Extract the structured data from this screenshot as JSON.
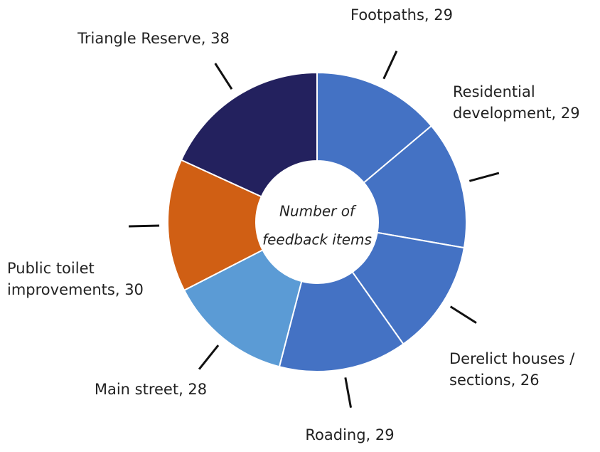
{
  "chart_data": {
    "type": "donut",
    "center_label": [
      "Number of",
      "feedback items"
    ],
    "values": [
      29,
      29,
      26,
      29,
      28,
      30,
      38
    ],
    "value_labels": [
      [
        "Footpaths, 29"
      ],
      [
        "Residential",
        "development, 29"
      ],
      [
        "Derelict houses /",
        "sections, 26"
      ],
      [
        "Roading, 29"
      ],
      [
        "Main street, 28"
      ],
      [
        "Public toilet",
        "improvements, 30"
      ],
      [
        "Triangle Reserve, 38"
      ]
    ],
    "colors": [
      "#4472c4",
      "#4472c4",
      "#4472c4",
      "#4472c4",
      "#5b9bd5",
      "#d05f14",
      "#23215e"
    ]
  }
}
